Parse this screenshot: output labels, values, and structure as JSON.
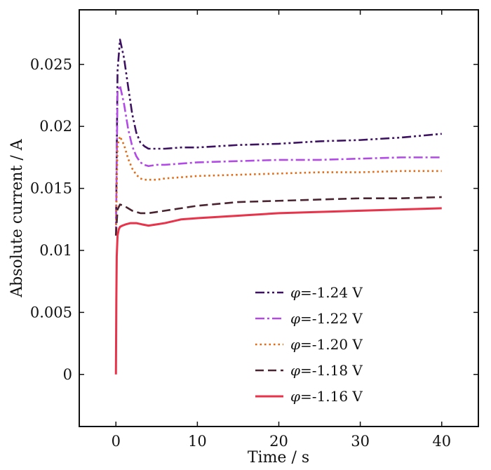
{
  "chart_data": {
    "type": "line",
    "title": "",
    "xlabel": "Time / s",
    "ylabel": "Absolute current / A",
    "xlim": [
      -4.5,
      44.5
    ],
    "ylim": [
      -0.0042,
      0.0294
    ],
    "x_ticks": [
      0,
      10,
      20,
      30,
      40
    ],
    "x_tick_labels": [
      "0",
      "10",
      "20",
      "30",
      "40"
    ],
    "y_ticks": [
      0,
      0.005,
      0.01,
      0.015,
      0.02,
      0.025
    ],
    "y_tick_labels": [
      "0",
      "0.005",
      "0.01",
      "0.015",
      "0.02",
      "0.025"
    ],
    "grid": false,
    "legend_position": "bottom-right",
    "series": [
      {
        "name": "φ=-1.24 V",
        "name_symbol": "φ",
        "name_rest": "=-1.24 V",
        "color": "#3d1260",
        "dash": "dash-dot-dot",
        "x": [
          0,
          0.2,
          0.5,
          1.0,
          1.5,
          2.0,
          2.5,
          3.0,
          3.5,
          4.0,
          5.0,
          6.0,
          8.0,
          10,
          15,
          20,
          25,
          30,
          35,
          40
        ],
        "y": [
          0.0112,
          0.0245,
          0.027,
          0.0255,
          0.0232,
          0.021,
          0.0195,
          0.0187,
          0.0184,
          0.0182,
          0.0182,
          0.0182,
          0.0183,
          0.0183,
          0.0185,
          0.0186,
          0.0188,
          0.0189,
          0.0191,
          0.0194
        ]
      },
      {
        "name": "φ=-1.22 V",
        "name_symbol": "φ",
        "name_rest": "=-1.22 V",
        "color": "#b24be6",
        "dash": "dash-dot",
        "x": [
          0,
          0.2,
          0.5,
          1.0,
          1.5,
          2.0,
          2.5,
          3.0,
          3.5,
          4.0,
          5.0,
          6.0,
          8.0,
          10,
          15,
          20,
          25,
          30,
          35,
          40
        ],
        "y": [
          0.0112,
          0.0228,
          0.0233,
          0.0218,
          0.0198,
          0.0184,
          0.0176,
          0.0171,
          0.0169,
          0.0168,
          0.0169,
          0.0169,
          0.017,
          0.0171,
          0.0172,
          0.0173,
          0.0173,
          0.0174,
          0.0175,
          0.0175
        ]
      },
      {
        "name": "φ=-1.20 V",
        "name_symbol": "φ",
        "name_rest": "=-1.20 V",
        "color": "#e26a12",
        "dash": "dotted",
        "x": [
          0,
          0.2,
          0.5,
          1.0,
          1.5,
          2.0,
          2.5,
          3.0,
          3.5,
          4.0,
          5.0,
          6.0,
          8.0,
          10,
          15,
          20,
          25,
          30,
          35,
          40
        ],
        "y": [
          0.0113,
          0.0185,
          0.0192,
          0.0185,
          0.0174,
          0.0166,
          0.0161,
          0.0158,
          0.0157,
          0.0157,
          0.0157,
          0.0158,
          0.0159,
          0.016,
          0.0161,
          0.0162,
          0.0163,
          0.0163,
          0.0164,
          0.0164
        ]
      },
      {
        "name": "φ=-1.18 V",
        "name_symbol": "φ",
        "name_rest": "=-1.18 V",
        "color": "#4a2430",
        "dash": "dashed",
        "x": [
          0,
          0.2,
          0.5,
          1.0,
          1.5,
          2.0,
          2.5,
          3.0,
          3.5,
          4.0,
          5.0,
          6.0,
          8.0,
          10,
          15,
          20,
          25,
          30,
          35,
          40
        ],
        "y": [
          0.0112,
          0.0133,
          0.0137,
          0.0136,
          0.0134,
          0.0132,
          0.0131,
          0.013,
          0.013,
          0.013,
          0.0131,
          0.0132,
          0.0134,
          0.0136,
          0.0139,
          0.014,
          0.0141,
          0.0142,
          0.0142,
          0.0143
        ]
      },
      {
        "name": "φ=-1.16 V",
        "name_symbol": "φ",
        "name_rest": "=-1.16 V",
        "color": "#e8334a",
        "dash": "solid",
        "x": [
          0,
          0.05,
          0.1,
          0.2,
          0.35,
          0.5,
          0.8,
          1.2,
          1.8,
          2.5,
          3.2,
          4.0,
          5.0,
          6.0,
          8.0,
          10,
          15,
          20,
          25,
          30,
          35,
          40
        ],
        "y": [
          0.0,
          0.006,
          0.0095,
          0.0112,
          0.0117,
          0.0119,
          0.012,
          0.0121,
          0.0122,
          0.0122,
          0.0121,
          0.012,
          0.0121,
          0.0122,
          0.0125,
          0.0126,
          0.0128,
          0.013,
          0.0131,
          0.0132,
          0.0133,
          0.0134
        ]
      }
    ]
  }
}
